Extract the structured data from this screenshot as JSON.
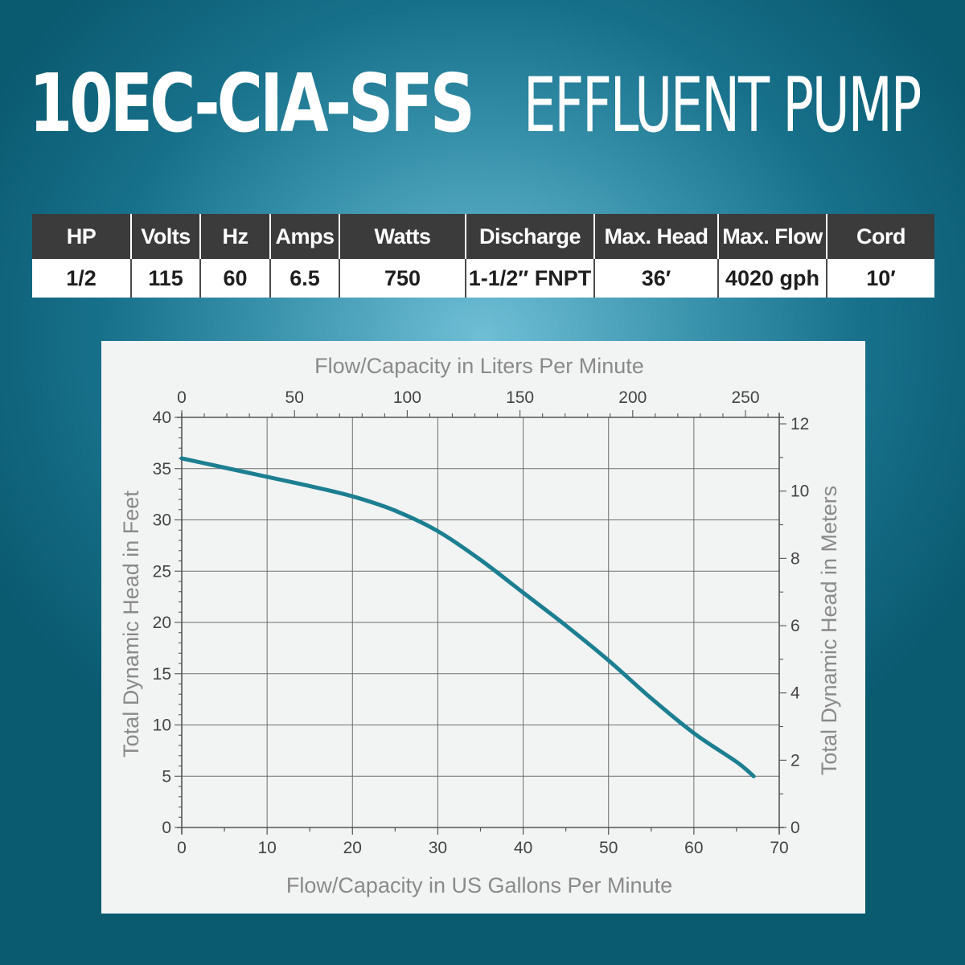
{
  "title": {
    "model": "10EC-CIA-SFS",
    "description": "EFFLUENT PUMP"
  },
  "specs": {
    "headers": [
      "HP",
      "Volts",
      "Hz",
      "Amps",
      "Watts",
      "Discharge",
      "Max. Head",
      "Max. Flow",
      "Cord"
    ],
    "values": [
      "1/2",
      "115",
      "60",
      "6.5",
      "750",
      "1-1/2″ FNPT",
      "36′",
      "4020 gph",
      "10′"
    ]
  },
  "colors": {
    "curve": "#1c7f91",
    "header_bg": "#3b3b3b"
  },
  "chart_data": {
    "type": "line",
    "xlabel": "Flow/Capacity in US Gallons Per Minute",
    "ylabel": "Total Dynamic Head in Feet",
    "x2label": "Flow/Capacity in Liters Per Minute",
    "y2label": "Total Dynamic Head in Meters",
    "xlim": [
      0,
      70
    ],
    "ylim": [
      0,
      40
    ],
    "x2lim": [
      0,
      264.98
    ],
    "y2lim": [
      0,
      12.192
    ],
    "x_ticks": [
      0,
      10,
      20,
      30,
      40,
      50,
      60,
      70
    ],
    "y_ticks": [
      0,
      5,
      10,
      15,
      20,
      25,
      30,
      35,
      40
    ],
    "x2_ticks": [
      0,
      50,
      100,
      150,
      200,
      250
    ],
    "y2_ticks": [
      0,
      2,
      4,
      6,
      8,
      10,
      12
    ],
    "grid": true,
    "series": [
      {
        "x": [
          0,
          5,
          10,
          15,
          20,
          25,
          30,
          35,
          40,
          45,
          50,
          55,
          60,
          65,
          67
        ],
        "y": [
          36,
          35.1,
          34.2,
          33.3,
          32.3,
          30.9,
          28.9,
          26.1,
          22.9,
          19.7,
          16.3,
          12.6,
          9.2,
          6.4,
          5
        ]
      }
    ]
  }
}
